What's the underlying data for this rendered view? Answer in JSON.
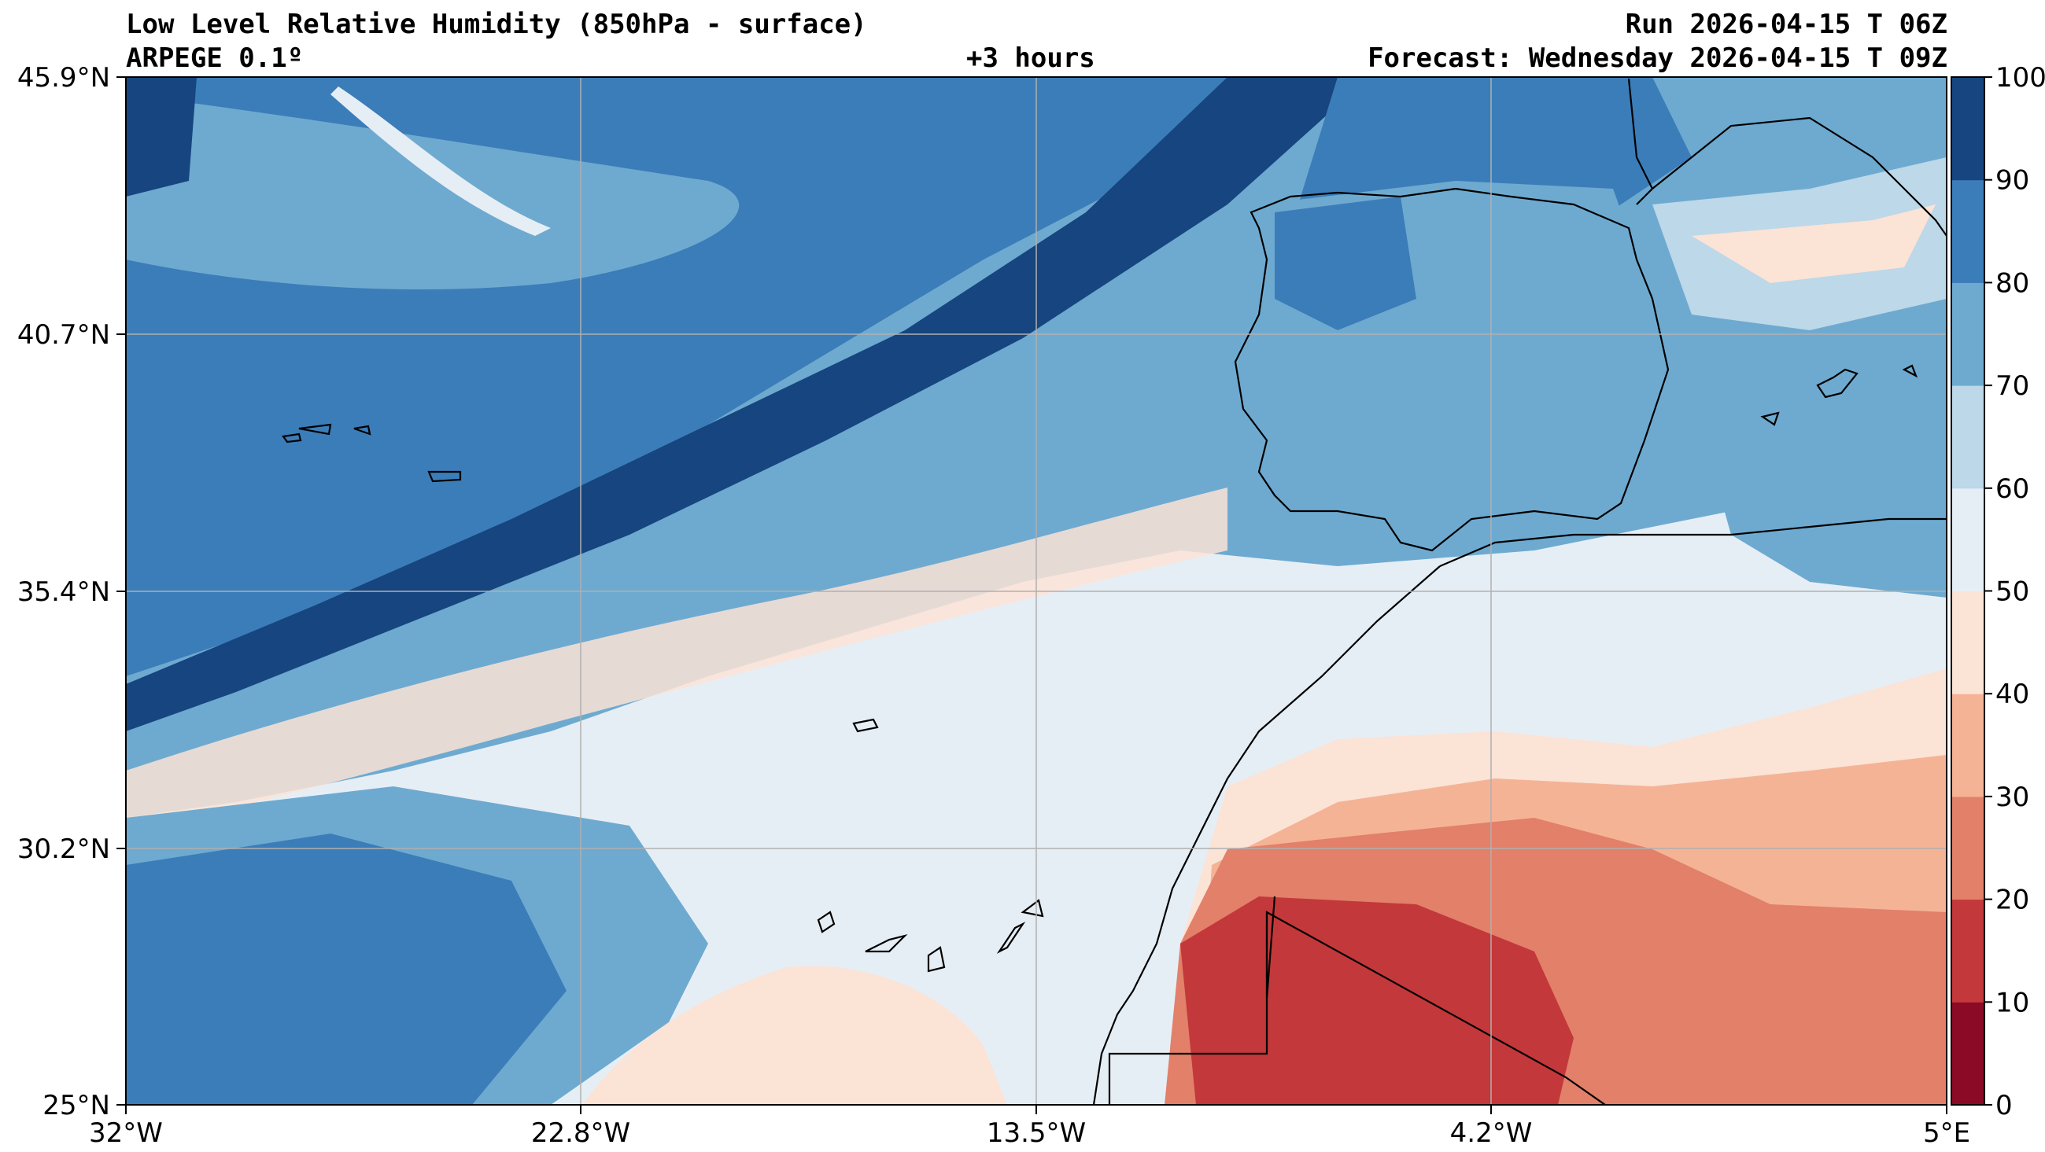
{
  "header": {
    "title": "Low Level Relative Humidity (850hPa - surface)",
    "model": "ARPEGE 0.1º",
    "lead": "+3 hours",
    "run": "Run 2026-04-15 T 06Z",
    "forecast": "Forecast: Wednesday 2026-04-15 T 09Z"
  },
  "map": {
    "lat_labels": [
      "45.9°N",
      "40.7°N",
      "35.4°N",
      "30.2°N",
      "25°N"
    ],
    "lon_labels": [
      "32°W",
      "22.8°W",
      "13.5°W",
      "4.2°W",
      "5°E"
    ],
    "gridlines": true
  },
  "colorbar": {
    "ticks": [
      "0",
      "10",
      "20",
      "30",
      "40",
      "50",
      "60",
      "70",
      "80",
      "90",
      "100"
    ],
    "colors": [
      "#8b0a26",
      "#c3383a",
      "#e2806a",
      "#f5b396",
      "#fbe3d6",
      "#e6eef5",
      "#bcd8e9",
      "#6eaad0",
      "#3b7db9",
      "#16457f"
    ]
  }
}
